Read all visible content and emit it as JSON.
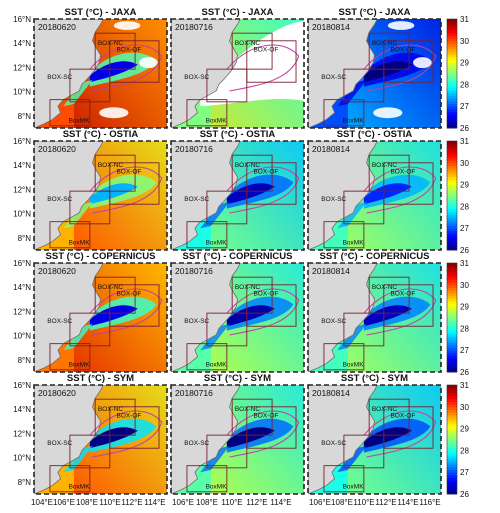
{
  "colors": {
    "land": "#d8d8d8",
    "coast": "#6e6e6e",
    "box_edge": "#7a1f2f",
    "contour": "#c040a0",
    "missing": "#ffffff"
  },
  "colorbar": {
    "ticks": [
      26,
      27,
      28,
      29,
      30,
      31
    ],
    "colormap": "jet"
  },
  "dates": [
    "20180620",
    "20180716",
    "20180814"
  ],
  "box_labels": {
    "nc": "BOX-NC",
    "sc": "BOX-SC",
    "of": "BOX-OF",
    "mk": "BoxMK"
  },
  "y_ticks": [
    "8°N",
    "10°N",
    "12°N",
    "14°N",
    "16°N"
  ],
  "x_ticks": [
    [
      "104°E",
      "106°E",
      "108°E",
      "110°E",
      "112°E",
      "114°E"
    ],
    [
      "106°E",
      "108°E",
      "110°E",
      "112°E",
      "114°E"
    ],
    [
      "106°E",
      "108°E",
      "110°E",
      "112°E",
      "114°E",
      "116°E"
    ]
  ],
  "rows": [
    {
      "title": "SST (°C) - JAXA",
      "dataset": "JAXA"
    },
    {
      "title": "SST (°C) - OSTIA",
      "dataset": "OSTIA"
    },
    {
      "title": "SST (°C) - COPERNICUS",
      "dataset": "COPERNICUS"
    },
    {
      "title": "SST (°C) - SYM",
      "dataset": "SYM"
    }
  ],
  "chart_data": {
    "type": "heatmap",
    "quantity": "SST (°C)",
    "value_range": [
      26,
      31
    ],
    "x_axis": "longitude (°E)",
    "y_axis": "latitude (°N)",
    "ylim": [
      7,
      16
    ],
    "xlim_by_column": [
      [
        104,
        115
      ],
      [
        105,
        115
      ],
      [
        105,
        116
      ]
    ],
    "panels": [
      {
        "dataset": "JAXA",
        "date": "20180620",
        "background_sst": 30.0,
        "upwelling_min_sst": 26.5,
        "cloud_cover": "partial"
      },
      {
        "dataset": "JAXA",
        "date": "20180716",
        "background_sst": 28.5,
        "upwelling_min_sst": 26.5,
        "cloud_cover": "extensive"
      },
      {
        "dataset": "JAXA",
        "date": "20180814",
        "background_sst": 27.0,
        "upwelling_min_sst": 26.0,
        "cloud_cover": "partial"
      },
      {
        "dataset": "OSTIA",
        "date": "20180620",
        "background_sst": 29.5,
        "upwelling_min_sst": 27.5,
        "cloud_cover": "none"
      },
      {
        "dataset": "OSTIA",
        "date": "20180716",
        "background_sst": 28.0,
        "upwelling_min_sst": 26.3,
        "cloud_cover": "none"
      },
      {
        "dataset": "OSTIA",
        "date": "20180814",
        "background_sst": 28.2,
        "upwelling_min_sst": 26.8,
        "cloud_cover": "none"
      },
      {
        "dataset": "COPERNICUS",
        "date": "20180620",
        "background_sst": 29.8,
        "upwelling_min_sst": 26.5,
        "cloud_cover": "none"
      },
      {
        "dataset": "COPERNICUS",
        "date": "20180716",
        "background_sst": 28.3,
        "upwelling_min_sst": 26.2,
        "cloud_cover": "none"
      },
      {
        "dataset": "COPERNICUS",
        "date": "20180814",
        "background_sst": 28.2,
        "upwelling_min_sst": 26.3,
        "cloud_cover": "none"
      },
      {
        "dataset": "SYM",
        "date": "20180620",
        "background_sst": 29.5,
        "upwelling_min_sst": 26.0,
        "cloud_cover": "none"
      },
      {
        "dataset": "SYM",
        "date": "20180716",
        "background_sst": 28.3,
        "upwelling_min_sst": 26.0,
        "cloud_cover": "none"
      },
      {
        "dataset": "SYM",
        "date": "20180814",
        "background_sst": 28.0,
        "upwelling_min_sst": 26.0,
        "cloud_cover": "none"
      }
    ]
  }
}
